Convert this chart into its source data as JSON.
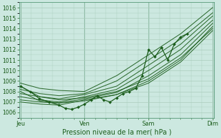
{
  "title": "Pression niveau de la mer( hPa )",
  "background_color": "#cce8e0",
  "grid_color": "#aaccbb",
  "line_color": "#1a5c1a",
  "marker_color": "#1a5c1a",
  "ylim": [
    1005.5,
    1016.5
  ],
  "ytick_min": 1006,
  "ytick_max": 1016,
  "day_labels": [
    "Jeu",
    "Ven",
    "Sam",
    "Dim"
  ],
  "day_positions": [
    0,
    1,
    2,
    3
  ],
  "xlim": [
    -0.02,
    3.02
  ],
  "forecast_lines": [
    {
      "ctrl_x": [
        0,
        0.3,
        0.6,
        1.0,
        1.5,
        2.0,
        2.5,
        3.0
      ],
      "ctrl_y": [
        1008.8,
        1008.3,
        1008.1,
        1008.0,
        1009.5,
        1011.5,
        1013.5,
        1016.0
      ]
    },
    {
      "ctrl_x": [
        0,
        0.3,
        0.6,
        1.0,
        1.5,
        2.0,
        2.5,
        3.0
      ],
      "ctrl_y": [
        1008.2,
        1007.8,
        1007.6,
        1007.8,
        1009.0,
        1011.0,
        1013.0,
        1015.5
      ]
    },
    {
      "ctrl_x": [
        0,
        0.3,
        0.6,
        1.0,
        1.5,
        2.0,
        2.5,
        3.0
      ],
      "ctrl_y": [
        1007.8,
        1007.5,
        1007.3,
        1007.7,
        1008.5,
        1010.5,
        1012.5,
        1015.2
      ]
    },
    {
      "ctrl_x": [
        0,
        0.3,
        0.6,
        1.0,
        1.5,
        2.0,
        2.5,
        3.0
      ],
      "ctrl_y": [
        1007.5,
        1007.2,
        1007.0,
        1007.5,
        1008.2,
        1010.0,
        1012.0,
        1014.8
      ]
    },
    {
      "ctrl_x": [
        0,
        0.3,
        0.6,
        1.0,
        1.5,
        2.0,
        2.5,
        3.0
      ],
      "ctrl_y": [
        1007.2,
        1007.0,
        1006.9,
        1007.3,
        1007.9,
        1009.5,
        1011.5,
        1014.5
      ]
    },
    {
      "ctrl_x": [
        0,
        0.3,
        0.6,
        1.0,
        1.5,
        2.0,
        2.5,
        3.0
      ],
      "ctrl_y": [
        1007.0,
        1006.8,
        1006.7,
        1007.2,
        1007.7,
        1009.0,
        1011.0,
        1014.2
      ]
    },
    {
      "ctrl_x": [
        0,
        0.3,
        0.6,
        1.0,
        1.5,
        2.0,
        2.5,
        3.0
      ],
      "ctrl_y": [
        1008.5,
        1007.5,
        1007.2,
        1007.4,
        1008.0,
        1009.2,
        1011.2,
        1014.0
      ]
    },
    {
      "ctrl_x": [
        0,
        0.3,
        0.6,
        1.0,
        1.5,
        2.0,
        2.5,
        3.0
      ],
      "ctrl_y": [
        1008.0,
        1007.1,
        1006.9,
        1007.1,
        1007.7,
        1008.8,
        1010.8,
        1013.8
      ]
    }
  ],
  "actual_ctrl_x": [
    0,
    0.15,
    0.3,
    0.45,
    0.6,
    0.7,
    0.8,
    0.9,
    1.0,
    1.1,
    1.2,
    1.3,
    1.4,
    1.5,
    1.6,
    1.7,
    1.8,
    1.9,
    2.0,
    2.1,
    2.2,
    2.3,
    2.4,
    2.5,
    2.6
  ],
  "actual_ctrl_y": [
    1008.5,
    1008.0,
    1007.3,
    1007.0,
    1006.7,
    1006.4,
    1006.3,
    1006.5,
    1006.8,
    1007.2,
    1007.6,
    1007.2,
    1007.0,
    1007.4,
    1007.8,
    1008.0,
    1008.3,
    1009.5,
    1012.0,
    1011.3,
    1012.2,
    1011.0,
    1012.5,
    1013.2,
    1013.5
  ]
}
